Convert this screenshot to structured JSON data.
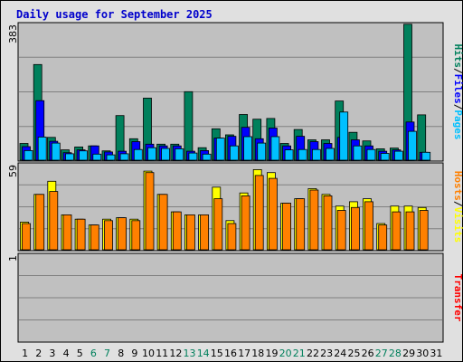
{
  "chart_data": {
    "type": "bar",
    "title": "Daily usage for September 2025",
    "days": [
      "1",
      "2",
      "3",
      "4",
      "5",
      "6",
      "7",
      "8",
      "9",
      "10",
      "11",
      "12",
      "13",
      "14",
      "15",
      "16",
      "17",
      "18",
      "19",
      "20",
      "21",
      "22",
      "23",
      "24",
      "25",
      "26",
      "27",
      "28",
      "29",
      "30",
      "31"
    ],
    "weekend_days": [
      "6",
      "7",
      "13",
      "14",
      "20",
      "21",
      "27",
      "28"
    ],
    "colors": {
      "title": "#0000cc",
      "hits": "#00805c",
      "files": "#0000ff",
      "pages": "#00c0ff",
      "visits": "#ffff00",
      "hosts": "#ff8000",
      "transfer": "#ff0000",
      "weekend_label": "#00805c",
      "weekday_label": "#000000",
      "plot_background": "#c0c0c0",
      "gridline": "#808080"
    },
    "panels": [
      {
        "ylim": [
          0,
          383
        ],
        "max_label": "383",
        "legend": [
          {
            "text": "Hits",
            "color": "#00805c"
          },
          {
            "text": "/",
            "color": "#000000"
          },
          {
            "text": "Files",
            "color": "#0000ff"
          },
          {
            "text": "/",
            "color": "#000000"
          },
          {
            "text": "Pages",
            "color": "#00c0ff"
          }
        ],
        "series": [
          {
            "name": "Hits",
            "color": "#00805c",
            "values": [
              47,
              268,
              64,
              29,
              37,
              40,
              26,
              125,
              60,
              174,
              45,
              45,
              192,
              35,
              88,
              71,
              128,
              115,
              117,
              47,
              86,
              57,
              57,
              166,
              78,
              54,
              32,
              34,
              381,
              127,
              0
            ]
          },
          {
            "name": "Files",
            "color": "#0000ff",
            "values": [
              38,
              167,
              53,
              21,
              29,
              40,
              23,
              25,
              52,
              45,
              40,
              40,
              25,
              27,
              62,
              67,
              92,
              60,
              90,
              40,
              67,
              52,
              47,
              64,
              57,
              40,
              25,
              29,
              107,
              22,
              0
            ]
          },
          {
            "name": "Pages",
            "color": "#00c0ff",
            "values": [
              27,
              65,
              48,
              18,
              26,
              17,
              15,
              18,
              30,
              35,
              33,
              32,
              20,
              17,
              62,
              40,
              66,
              48,
              66,
              29,
              30,
              30,
              33,
              135,
              40,
              30,
              19,
              25,
              81,
              22,
              0
            ]
          }
        ]
      },
      {
        "ylim": [
          0,
          59
        ],
        "max_label": "59",
        "legend": [
          {
            "text": "Hosts",
            "color": "#ff8000"
          },
          {
            "text": "/",
            "color": "#000000"
          },
          {
            "text": "Visits",
            "color": "#ffff00"
          }
        ],
        "series": [
          {
            "name": "Visits",
            "color": "#ffff00",
            "values": [
              19,
              38,
              47,
              24,
              21,
              17,
              21,
              22,
              21,
              54,
              38,
              26,
              24,
              24,
              43,
              20,
              39,
              55,
              53,
              32,
              35,
              42,
              38,
              30,
              33,
              35,
              18,
              30,
              30,
              29,
              0
            ]
          },
          {
            "name": "Hosts",
            "color": "#ff8000",
            "values": [
              18,
              38,
              40,
              24,
              21,
              17,
              20,
              22,
              20,
              53,
              38,
              26,
              24,
              24,
              35,
              18,
              37,
              51,
              49,
              32,
              35,
              41,
              37,
              27,
              29,
              33,
              17,
              26,
              26,
              27,
              0
            ]
          }
        ]
      },
      {
        "ylim": [
          0,
          1
        ],
        "max_label": "1",
        "legend": [
          {
            "text": "Transfer",
            "color": "#ff0000"
          }
        ],
        "series": [
          {
            "name": "Transfer",
            "color": "#ff0000",
            "values": [
              0,
              0,
              0,
              0,
              0,
              0,
              0,
              0,
              0,
              0,
              0,
              0,
              0,
              0,
              0,
              0,
              0,
              0,
              0,
              0,
              0,
              0,
              0,
              0,
              0,
              0,
              0,
              0,
              0,
              0,
              0
            ]
          }
        ]
      }
    ]
  }
}
